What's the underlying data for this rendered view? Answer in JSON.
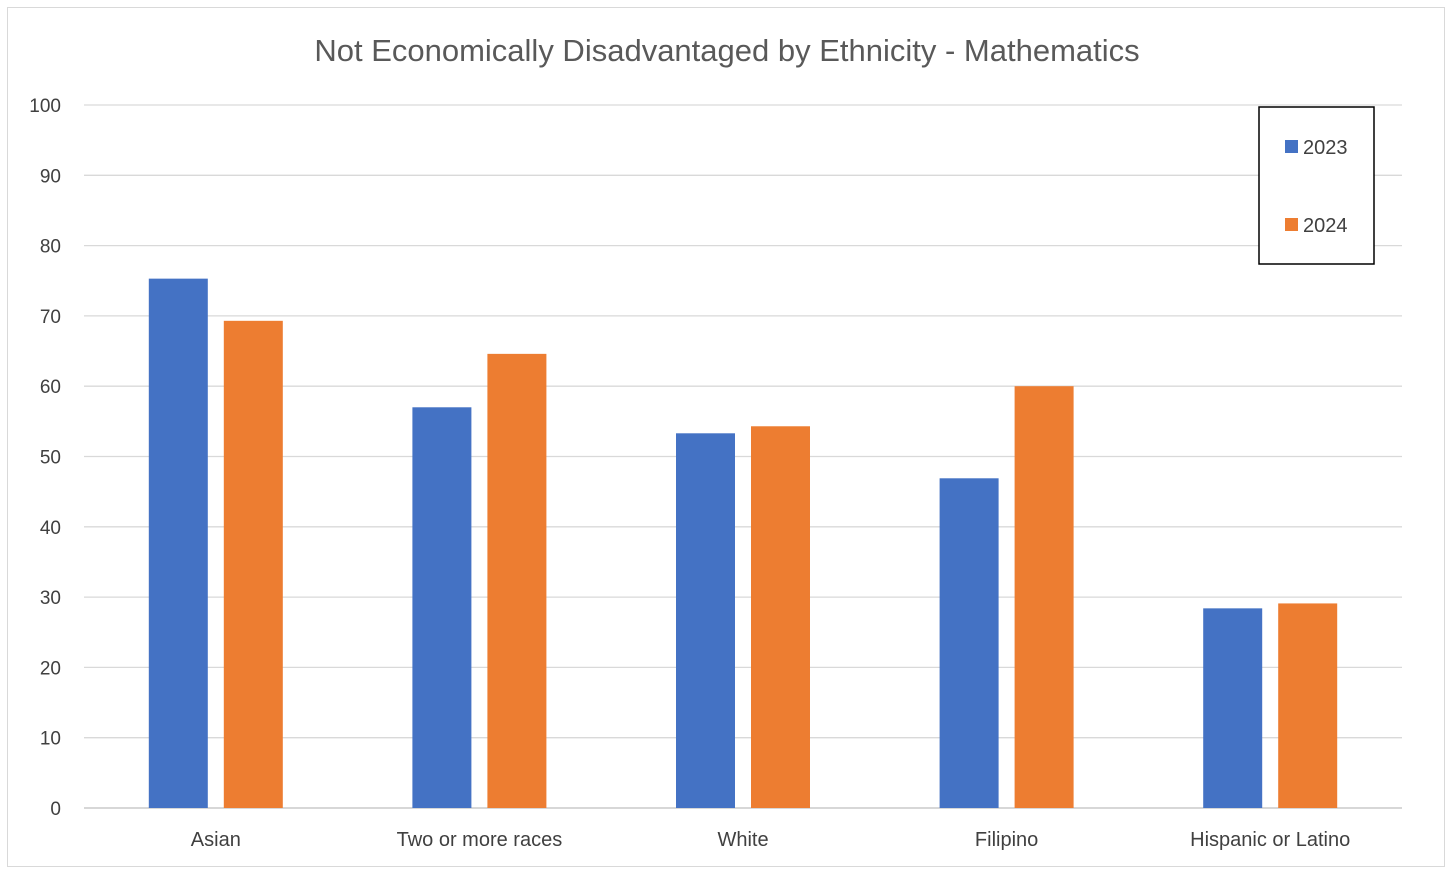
{
  "chart_data": {
    "type": "bar",
    "title": "Not Economically Disadvantaged by Ethnicity - Mathematics",
    "xlabel": "",
    "ylabel": "",
    "ylim": [
      0,
      100
    ],
    "yticks": [
      0,
      10,
      20,
      30,
      40,
      50,
      60,
      70,
      80,
      90,
      100
    ],
    "grid": true,
    "legend_position": "top-right",
    "categories": [
      "Asian",
      "Two or more races",
      "White",
      "Filipino",
      "Hispanic or Latino"
    ],
    "series": [
      {
        "name": "2023",
        "color": "#4472C4",
        "values": [
          75.3,
          57.0,
          53.3,
          46.9,
          28.4
        ]
      },
      {
        "name": "2024",
        "color": "#ED7D31",
        "values": [
          69.3,
          64.6,
          54.3,
          60.0,
          29.1
        ]
      }
    ]
  }
}
